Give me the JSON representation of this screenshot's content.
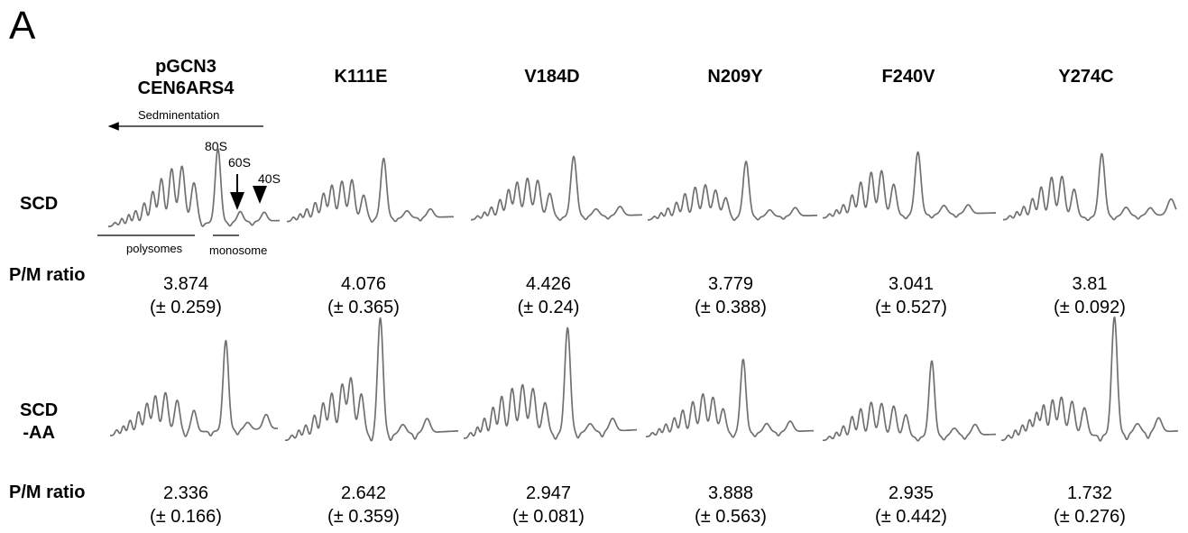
{
  "panel_label": "A",
  "columns": [
    {
      "name_line1": "pGCN3",
      "name_line2": "CEN6ARS4",
      "scd_ratio": "3.874",
      "scd_sd": "(± 0.259)",
      "aa_ratio": "2.336",
      "aa_sd": "(± 0.166)"
    },
    {
      "name_line1": "K111E",
      "name_line2": "",
      "scd_ratio": "4.076",
      "scd_sd": "(± 0.365)",
      "aa_ratio": "2.642",
      "aa_sd": "(± 0.359)"
    },
    {
      "name_line1": "V184D",
      "name_line2": "",
      "scd_ratio": "4.426",
      "scd_sd": "(± 0.24)",
      "aa_ratio": "2.947",
      "aa_sd": "(± 0.081)"
    },
    {
      "name_line1": "N209Y",
      "name_line2": "",
      "scd_ratio": "3.779",
      "scd_sd": "(± 0.388)",
      "aa_ratio": "3.888",
      "aa_sd": "(± 0.563)"
    },
    {
      "name_line1": "F240V",
      "name_line2": "",
      "scd_ratio": "3.041",
      "scd_sd": "(± 0.527)",
      "aa_ratio": "2.935",
      "aa_sd": "(± 0.442)"
    },
    {
      "name_line1": "Y274C",
      "name_line2": "",
      "scd_ratio": "3.81",
      "scd_sd": "(± 0.092)",
      "aa_ratio": "1.732",
      "aa_sd": "(± 0.276)"
    }
  ],
  "rows": {
    "scd_label": "SCD",
    "aa_label_line1": "SCD",
    "aa_label_line2": "-AA",
    "ratio_label": "P/M ratio"
  },
  "annotations": {
    "sedimentation": "Sedminentation",
    "peak_80s": "80S",
    "peak_60s": "60S",
    "peak_40s": "40S",
    "polysomes": "polysomes",
    "monosome": "monosome"
  },
  "colors": {
    "trace": "#707070",
    "text": "#000000"
  }
}
